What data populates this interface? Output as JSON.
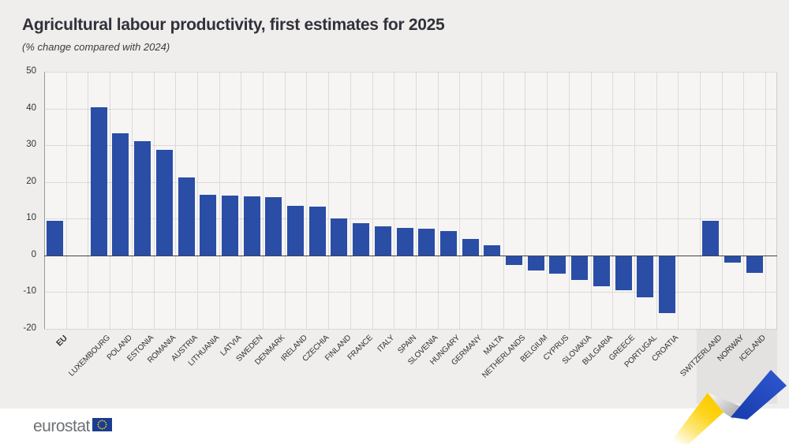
{
  "header": {
    "title": "Agricultural labour productivity, first estimates for 2025",
    "subtitle": "(% change compared with 2024)"
  },
  "footer": {
    "logo_text": "eurostat",
    "logo_flag": "eu-flag-icon"
  },
  "colors": {
    "bar_blue": "#2a4da6",
    "page_bg": "#efeeec",
    "plot_bg": "#f6f5f3",
    "shaded_band": "#e3e2e0",
    "zero_line": "#454545",
    "ribbon_yellow": "#ffd000",
    "ribbon_blue": "#2149c0",
    "flag_blue": "#1b3d91",
    "star_yellow": "#ffd617"
  },
  "chart_data": {
    "type": "bar",
    "title": "Agricultural labour productivity, first estimates for 2025",
    "subtitle": "(% change compared with 2024)",
    "xlabel": "",
    "ylabel": "% change compared with 2024",
    "ylim": [
      -20,
      50
    ],
    "ytick_interval": 10,
    "ytick_labels": [
      "50",
      "40",
      "30",
      "20",
      "10",
      "0",
      "-10",
      "-20"
    ],
    "grid": "dotted horizontal, solid vertical column separators",
    "legend": "none",
    "groups": [
      {
        "name": "eu-aggregate",
        "shaded": false,
        "bars": [
          {
            "label": "EU",
            "value": 9.5,
            "emphasis": true
          }
        ]
      },
      {
        "name": "eu-members",
        "shaded": false,
        "bars": [
          {
            "label": "LUXEMBOURG",
            "value": 40.3
          },
          {
            "label": "POLAND",
            "value": 33.3
          },
          {
            "label": "ESTONIA",
            "value": 31.0
          },
          {
            "label": "ROMANIA",
            "value": 28.8
          },
          {
            "label": "AUSTRIA",
            "value": 21.2
          },
          {
            "label": "LITHUANIA",
            "value": 16.6
          },
          {
            "label": "LATVIA",
            "value": 16.2
          },
          {
            "label": "SWEDEN",
            "value": 16.1
          },
          {
            "label": "DENMARK",
            "value": 15.8
          },
          {
            "label": "IRELAND",
            "value": 13.6
          },
          {
            "label": "CZECHIA",
            "value": 13.3
          },
          {
            "label": "FINLAND",
            "value": 10.1
          },
          {
            "label": "FRANCE",
            "value": 8.7
          },
          {
            "label": "ITALY",
            "value": 7.9
          },
          {
            "label": "SPAIN",
            "value": 7.4
          },
          {
            "label": "SLOVENIA",
            "value": 7.3
          },
          {
            "label": "HUNGARY",
            "value": 6.6
          },
          {
            "label": "GERMANY",
            "value": 4.4
          },
          {
            "label": "MALTA",
            "value": 2.8
          },
          {
            "label": "NETHERLANDS",
            "value": -2.4
          },
          {
            "label": "BELGIUM",
            "value": -3.8
          },
          {
            "label": "CYPRUS",
            "value": -4.8
          },
          {
            "label": "SLOVAKIA",
            "value": -6.4
          },
          {
            "label": "BULGARIA",
            "value": -8.3
          },
          {
            "label": "GREECE",
            "value": -9.3
          },
          {
            "label": "PORTUGAL",
            "value": -11.1
          },
          {
            "label": "CROATIA",
            "value": -15.5
          }
        ]
      },
      {
        "name": "efta",
        "shaded": true,
        "bars": [
          {
            "label": "SWITZERLAND",
            "value": 9.4
          },
          {
            "label": "NORWAY",
            "value": -1.8
          },
          {
            "label": "ICELAND",
            "value": -4.5
          }
        ]
      }
    ]
  }
}
